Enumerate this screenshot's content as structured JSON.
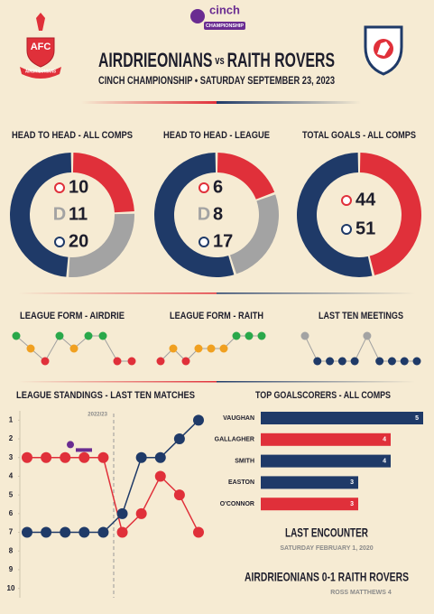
{
  "header": {
    "league_logo": {
      "brand": "cinch",
      "name": "CHAMPIONSHIP"
    },
    "home_badge": {
      "short": "AFC",
      "name": "AIRDRIEONIANS"
    },
    "title": {
      "home": "AIRDRIEONIANS",
      "separator": "vs",
      "away": "RAITH ROVERS"
    },
    "subtitle": "CINCH CHAMPIONSHIP • SATURDAY SEPTEMBER 23, 2023"
  },
  "chart_data": [
    {
      "type": "pie",
      "title": "HEAD TO HEAD - ALL COMPS",
      "categories": [
        null,
        "D",
        null
      ],
      "values": [
        10,
        11,
        20
      ],
      "colors": [
        "#e0303a",
        "#a3a3a3",
        "#1f3a68"
      ]
    },
    {
      "type": "pie",
      "title": "HEAD TO HEAD - LEAGUE",
      "categories": [
        null,
        "D",
        null
      ],
      "values": [
        6,
        8,
        17
      ],
      "colors": [
        "#e0303a",
        "#a3a3a3",
        "#1f3a68"
      ]
    },
    {
      "type": "pie",
      "title": "TOTAL GOALS - ALL COMPS",
      "categories": [
        null,
        null
      ],
      "values": [
        44,
        51
      ],
      "colors": [
        "#e0303a",
        "#1f3a68"
      ]
    },
    {
      "type": "line",
      "title": "LEAGUE FORM - AIRDRIE",
      "values": [
        1,
        0,
        -1,
        1,
        0,
        1,
        1,
        -1,
        -1
      ],
      "colors": [
        "#2aa84a",
        "#f0a020",
        "#e0303a",
        "#2aa84a",
        "#f0a020",
        "#2aa84a",
        "#2aa84a",
        "#e0303a",
        "#e0303a"
      ],
      "line_color": "#a0a0a0",
      "ylim": [
        -1,
        1
      ]
    },
    {
      "type": "line",
      "title": "LEAGUE FORM - RAITH",
      "values": [
        -1,
        0,
        -1,
        0,
        0,
        0,
        1,
        1,
        1
      ],
      "colors": [
        "#e0303a",
        "#f0a020",
        "#e0303a",
        "#f0a020",
        "#f0a020",
        "#f0a020",
        "#2aa84a",
        "#2aa84a",
        "#2aa84a"
      ],
      "line_color": "#a0a0a0",
      "ylim": [
        -1,
        1
      ]
    },
    {
      "type": "line",
      "title": "LAST TEN MEETINGS",
      "values": [
        0,
        -1,
        -1,
        -1,
        -1,
        0,
        -1,
        -1,
        -1,
        -1
      ],
      "colors": [
        "#a3a3a3",
        "#1f3a68",
        "#1f3a68",
        "#1f3a68",
        "#1f3a68",
        "#a3a3a3",
        "#1f3a68",
        "#1f3a68",
        "#1f3a68",
        "#1f3a68"
      ],
      "line_color": "#a0a0a0",
      "ylim": [
        -1,
        0
      ]
    },
    {
      "type": "line",
      "title": "LEAGUE STANDINGS - LAST TEN MATCHES",
      "series": [
        {
          "color": "#e0303a",
          "values": [
            3,
            3,
            3,
            3,
            3,
            7,
            6,
            4,
            5,
            7
          ]
        },
        {
          "color": "#1f3a68",
          "values": [
            7,
            7,
            7,
            7,
            7,
            6,
            3,
            3,
            2,
            1
          ]
        }
      ],
      "ylim": [
        10.5,
        0.5
      ],
      "yticks": [
        1,
        2,
        3,
        4,
        5,
        6,
        7,
        8,
        9,
        10
      ],
      "annotation": "2022/23"
    },
    {
      "type": "bar",
      "orientation": "horizontal",
      "title": "TOP GOALSCORERS - ALL COMPS",
      "categories": [
        "VAUGHAN",
        "GALLAGHER",
        "SMITH",
        "EASTON",
        "O'CONNOR"
      ],
      "values": [
        5,
        4,
        4,
        3,
        3
      ],
      "colors": [
        "#1f3a68",
        "#e0303a",
        "#1f3a68",
        "#1f3a68",
        "#e0303a"
      ],
      "xlim": [
        0,
        5
      ]
    }
  ],
  "last_encounter": {
    "title": "LAST ENCOUNTER",
    "date": "SATURDAY FEBRUARY 1, 2020",
    "result": "AIRDRIEONIANS 0-1 RAITH ROVERS",
    "scorers": "ROSS MATTHEWS 4"
  }
}
